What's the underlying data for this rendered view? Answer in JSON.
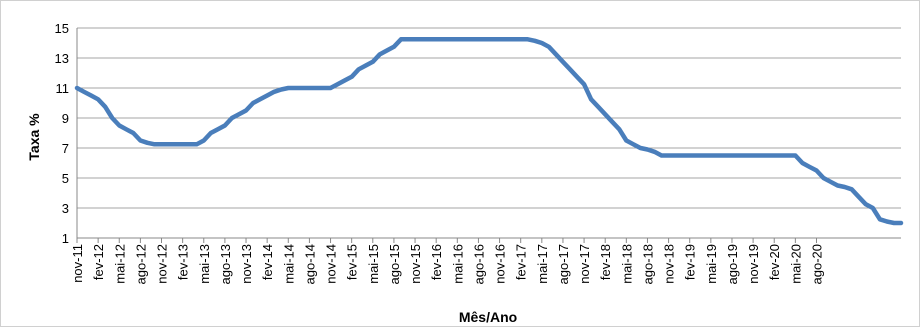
{
  "chart_data": {
    "type": "line",
    "title": "",
    "xlabel": "Mês/Ano",
    "ylabel": "Taxa %",
    "ylim": [
      1,
      15
    ],
    "yticks": [
      1,
      3,
      5,
      7,
      9,
      11,
      13,
      15
    ],
    "grid": "horizontal",
    "legend": "none",
    "line_color": "#4a7ebb",
    "x_tick_labels": [
      "nov-11",
      "fev-12",
      "mai-12",
      "ago-12",
      "nov-12",
      "fev-13",
      "mai-13",
      "ago-13",
      "nov-13",
      "fev-14",
      "mai-14",
      "ago-14",
      "nov-14",
      "fev-15",
      "mai-15",
      "ago-15",
      "nov-15",
      "fev-16",
      "mai-16",
      "ago-16",
      "nov-16",
      "fev-17",
      "mai-17",
      "ago-17",
      "nov-17",
      "fev-18",
      "mai-18",
      "ago-18",
      "nov-18",
      "fev-19",
      "mai-19",
      "ago-19",
      "nov-19",
      "fev-20",
      "mai-20",
      "ago-20"
    ],
    "series": [
      {
        "values": [
          11.0,
          10.75,
          10.5,
          10.25,
          9.75,
          9.0,
          8.5,
          8.25,
          8.0,
          7.5,
          7.35,
          7.25,
          7.25,
          7.25,
          7.25,
          7.25,
          7.25,
          7.25,
          7.5,
          8.0,
          8.25,
          8.5,
          9.0,
          9.25,
          9.5,
          10.0,
          10.25,
          10.5,
          10.75,
          10.9,
          11.0,
          11.0,
          11.0,
          11.0,
          11.0,
          11.0,
          11.0,
          11.25,
          11.5,
          11.75,
          12.25,
          12.5,
          12.75,
          13.25,
          13.5,
          13.75,
          14.25,
          14.25,
          14.25,
          14.25,
          14.25,
          14.25,
          14.25,
          14.25,
          14.25,
          14.25,
          14.25,
          14.25,
          14.25,
          14.25,
          14.25,
          14.25,
          14.25,
          14.25,
          14.25,
          14.15,
          14.0,
          13.75,
          13.25,
          12.75,
          12.25,
          11.75,
          11.25,
          10.25,
          9.75,
          9.25,
          8.75,
          8.25,
          7.5,
          7.25,
          7.0,
          6.9,
          6.75,
          6.5,
          6.5,
          6.5,
          6.5,
          6.5,
          6.5,
          6.5,
          6.5,
          6.5,
          6.5,
          6.5,
          6.5,
          6.5,
          6.5,
          6.5,
          6.5,
          6.5,
          6.5,
          6.5,
          6.5,
          6.0,
          5.75,
          5.5,
          5.0,
          4.75,
          4.5,
          4.4,
          4.25,
          3.75,
          3.25,
          3.0,
          2.25,
          2.1,
          2.0,
          2.0
        ]
      }
    ]
  }
}
